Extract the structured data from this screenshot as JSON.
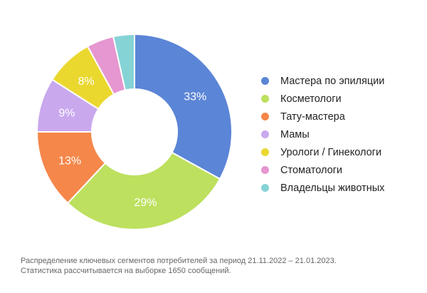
{
  "chart_data": {
    "type": "pie",
    "donut": true,
    "categories": [
      "Мастера по эпиляции",
      "Косметологи",
      "Тату-мастера",
      "Мамы",
      "Урологи / Гинекологи",
      "Стоматологи",
      "Владельцы животных"
    ],
    "values": [
      33,
      29,
      13,
      9,
      8,
      4.5,
      3.5
    ],
    "data_labels": [
      "33%",
      "29%",
      "13%",
      "9%",
      "8%",
      "",
      ""
    ],
    "colors": [
      "#5b85d6",
      "#bde05e",
      "#f5874a",
      "#c9a8ee",
      "#ead82f",
      "#e696d0",
      "#86d3d6"
    ],
    "legend_position": "right",
    "title": ""
  },
  "note": {
    "line1": "Распределение ключевых сегментов потребителей за период 21.11.2022 – 21.01.2023.",
    "line2": "Статистика рассчитывается на выборке 1650 сообщений."
  }
}
